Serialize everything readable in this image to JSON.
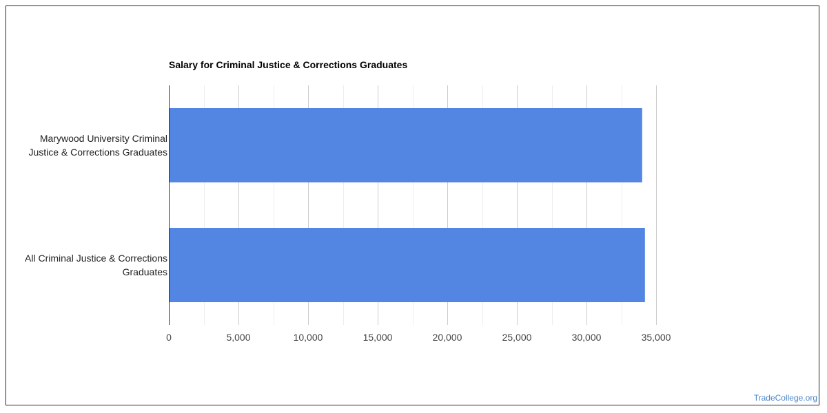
{
  "source_link": "TradeCollege.org",
  "colors": {
    "bar": "#5286e2",
    "grid_major": "#cccccc",
    "grid_minor": "#eeeeee",
    "axis": "#333333",
    "link": "#4a86c8"
  },
  "chart_data": {
    "type": "bar",
    "orientation": "horizontal",
    "title": "Salary for Criminal Justice & Corrections Graduates",
    "categories": [
      [
        "Marywood University Criminal",
        "Justice & Corrections Graduates"
      ],
      [
        "All Criminal Justice & Corrections",
        "Graduates"
      ]
    ],
    "values": [
      34000,
      34200
    ],
    "xlim": [
      0,
      35000
    ],
    "xticks": [
      0,
      5000,
      10000,
      15000,
      20000,
      25000,
      30000,
      35000
    ],
    "xtick_labels": [
      "0",
      "5,000",
      "10,000",
      "15,000",
      "20,000",
      "25,000",
      "30,000",
      "35,000"
    ],
    "grid": true,
    "legend": "none"
  }
}
